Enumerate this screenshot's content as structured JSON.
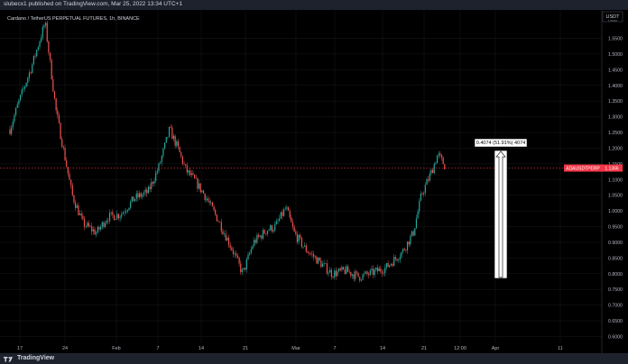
{
  "header": {
    "publish_line": "slubecx1 published on TradingView.com, Mar 25, 2022 13:34 UTC+1"
  },
  "symbol_line": "Cardano / TetherUS PERPETUAL FUTURES, 1h, BINANCE",
  "currency": "USDT",
  "currency_sub": "Linear",
  "footer": {
    "brand": "TradingView"
  },
  "colors": {
    "up": "#26a69a",
    "down": "#ef5350",
    "price_tag": "#f23645",
    "background": "#000000",
    "grid": "#1a1a1a",
    "panel": "#131722"
  },
  "chart_data": {
    "type": "candlestick",
    "symbol": "Cardano / TetherUS PERPETUAL FUTURES, 1h, BINANCE",
    "y_ticks": [
      "1.5500",
      "1.5000",
      "1.4500",
      "1.4000",
      "1.3500",
      "1.3000",
      "1.2500",
      "1.2000",
      "1.1500",
      "1.1000",
      "1.0500",
      "1.0000",
      "0.9500",
      "0.9000",
      "0.8500",
      "0.8000",
      "0.7500",
      "0.7000",
      "0.6500",
      "0.6000"
    ],
    "x_ticks": [
      "17",
      "24",
      "Feb",
      "7",
      "14",
      "21",
      "Mar",
      "7",
      "14",
      "21",
      "12:00",
      "Apr",
      "11"
    ],
    "ylim": [
      0.56,
      1.62
    ],
    "last_price": {
      "value": 1.1366,
      "symbol_label": "ADAUSDTPERP",
      "label": "1.1366"
    },
    "measure": {
      "label": "0.4074 (51.91%) 4074",
      "from": 0.7852,
      "to": 1.1926
    },
    "path": [
      [
        1,
        1.26
      ],
      [
        4,
        1.34
      ],
      [
        9,
        1.46
      ],
      [
        14,
        1.6
      ],
      [
        18,
        1.32
      ],
      [
        24,
        1.05
      ],
      [
        28,
        0.96
      ],
      [
        33,
        0.93
      ],
      [
        37,
        0.98
      ],
      [
        42,
        0.99
      ],
      [
        47,
        1.04
      ],
      [
        52,
        1.06
      ],
      [
        56,
        1.14
      ],
      [
        60,
        1.26
      ],
      [
        63,
        1.2
      ],
      [
        66,
        1.13
      ],
      [
        69,
        1.1
      ],
      [
        73,
        1.05
      ],
      [
        78,
        0.97
      ],
      [
        83,
        0.88
      ],
      [
        87,
        0.8
      ],
      [
        91,
        0.9
      ],
      [
        96,
        0.94
      ],
      [
        99,
        0.95
      ],
      [
        103,
        1.01
      ],
      [
        106,
        0.93
      ],
      [
        110,
        0.88
      ],
      [
        115,
        0.84
      ],
      [
        120,
        0.8
      ],
      [
        125,
        0.81
      ],
      [
        130,
        0.79
      ],
      [
        134,
        0.8
      ],
      [
        140,
        0.82
      ],
      [
        146,
        0.87
      ],
      [
        150,
        0.93
      ],
      [
        153,
        1.05
      ],
      [
        157,
        1.13
      ],
      [
        159,
        1.18
      ],
      [
        162,
        1.14
      ]
    ]
  }
}
